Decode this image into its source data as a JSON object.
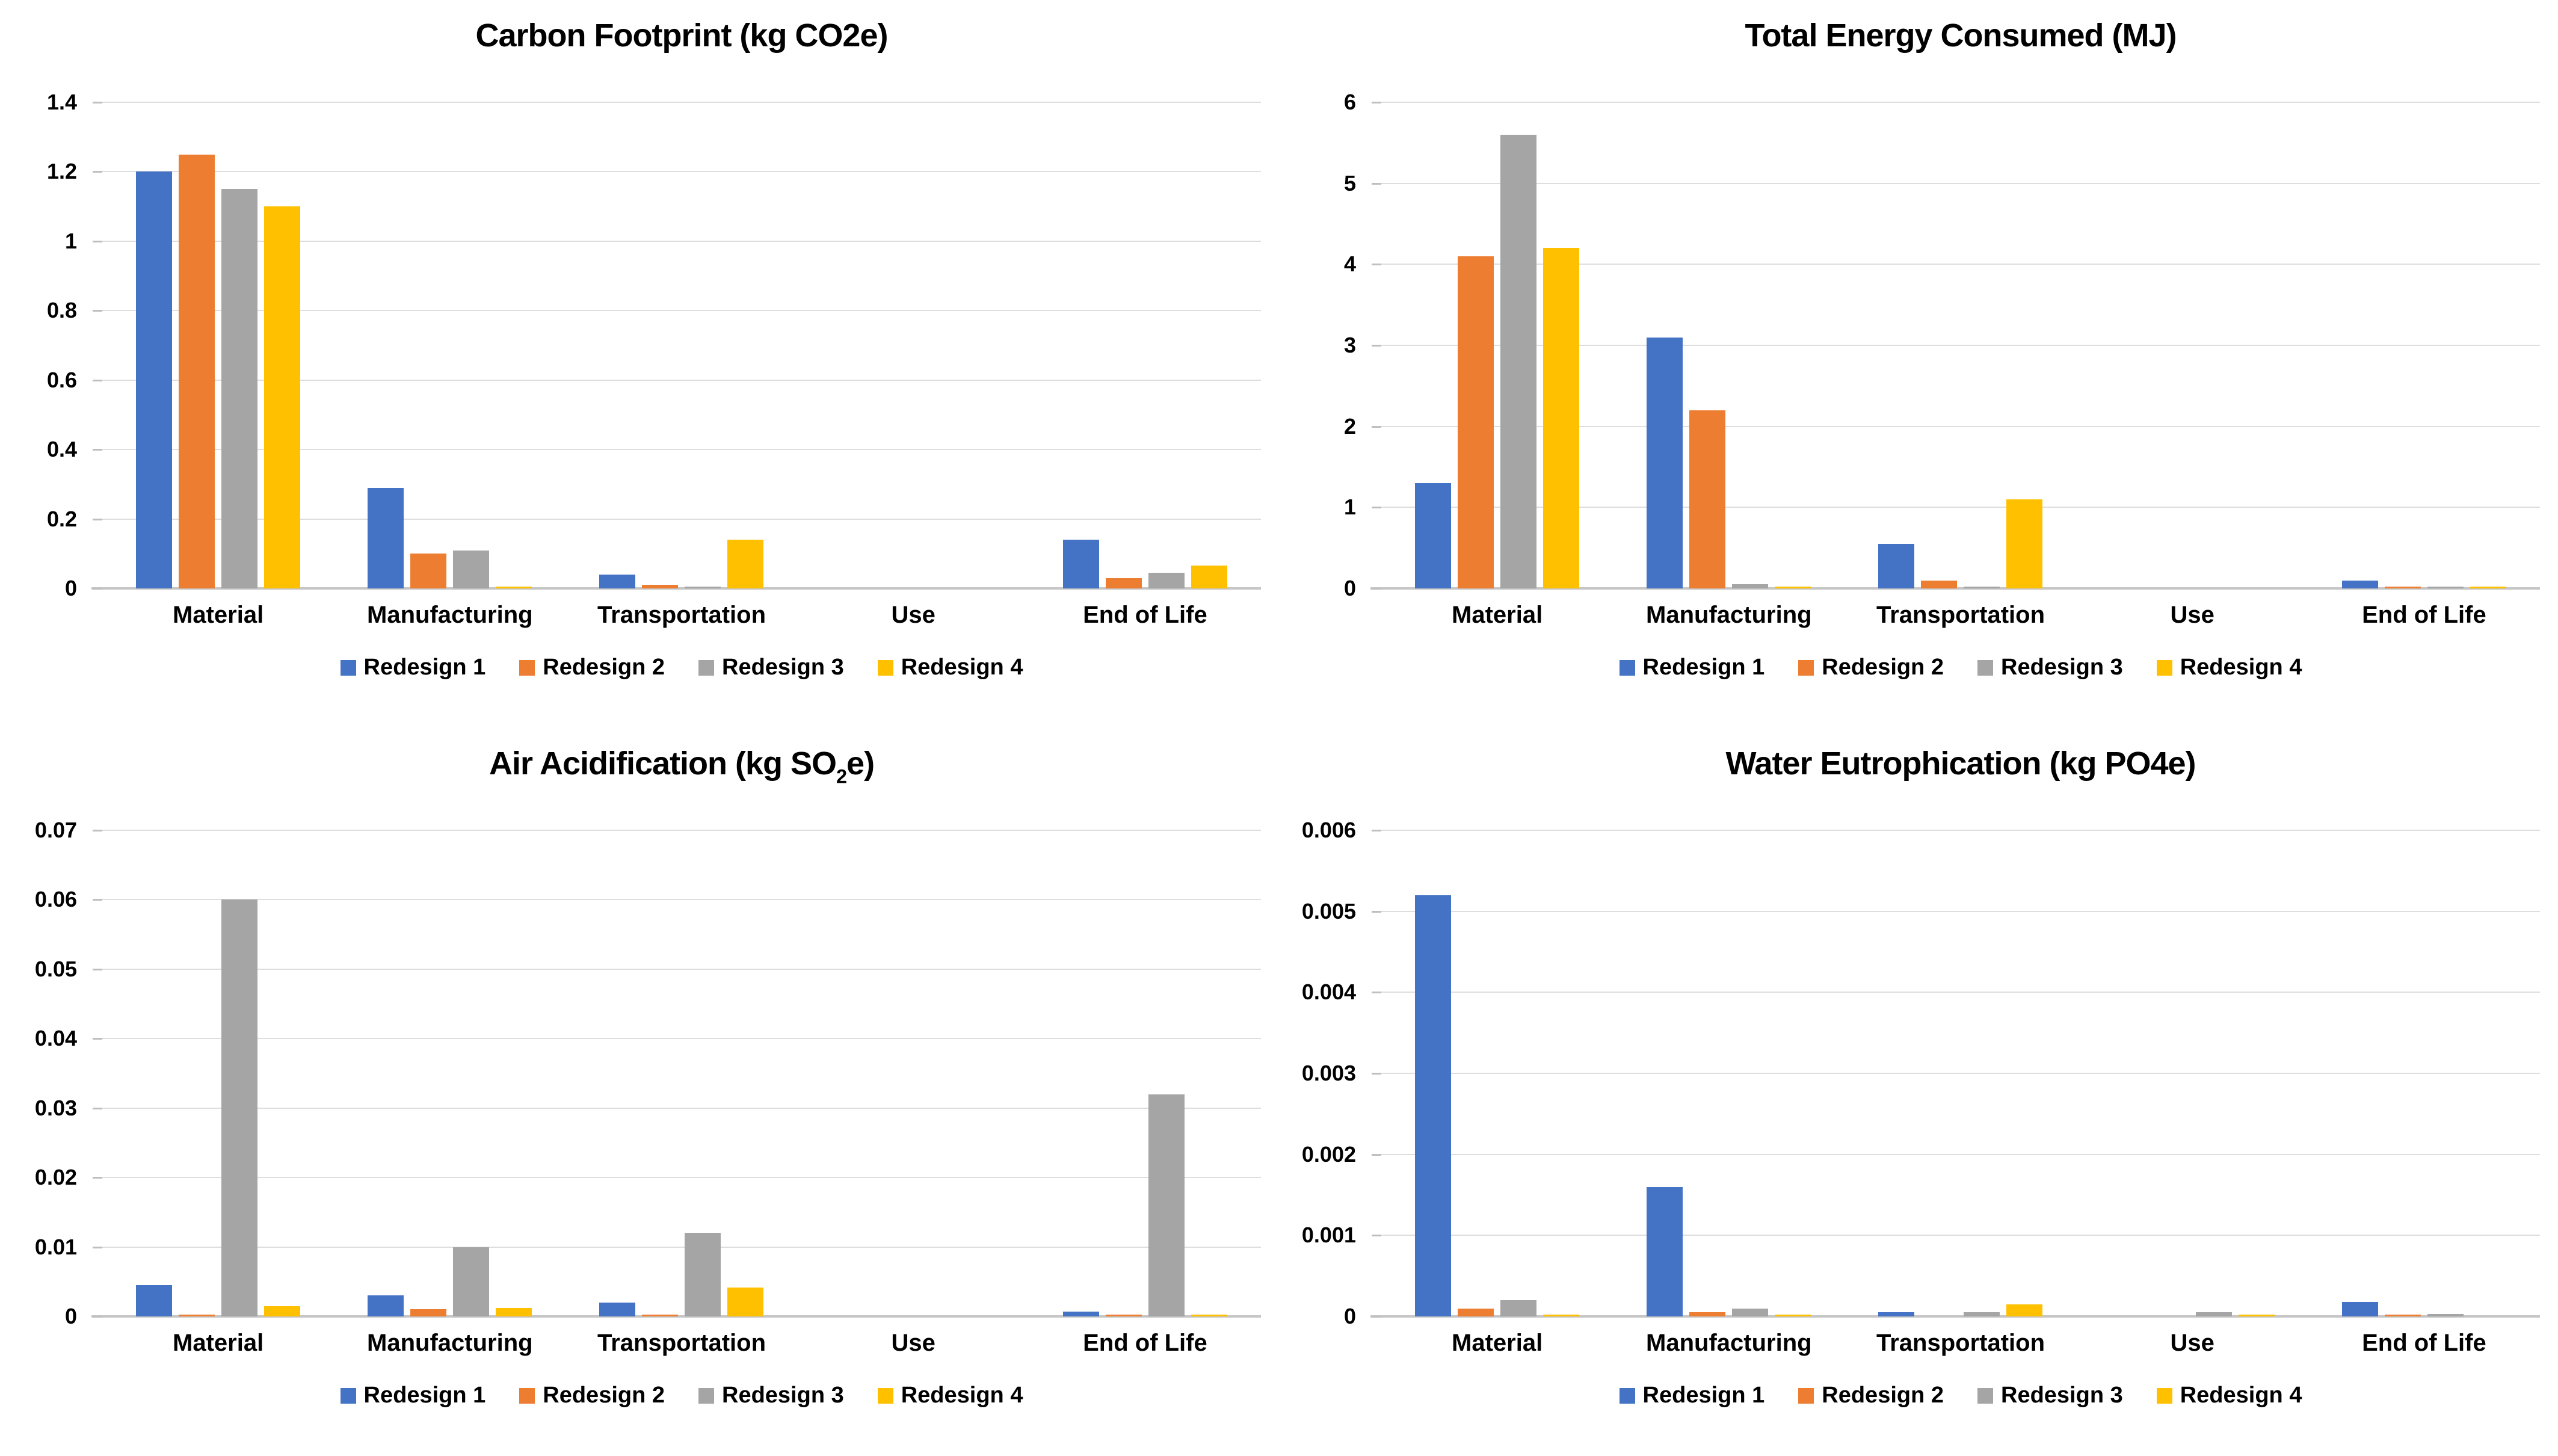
{
  "page": {
    "background": "#FFFFFF"
  },
  "palette": {
    "blue": "#4472C4",
    "orange": "#ED7D31",
    "gray": "#A5A5A5",
    "yellow": "#FFC000",
    "gridline": "#DEDEDE",
    "axis": "#C6C6C6",
    "tick": "#BFBFBF",
    "text": "#000000"
  },
  "legend_labels": [
    "Redesign 1",
    "Redesign 2",
    "Redesign 3",
    "Redesign 4"
  ],
  "chart_data": [
    {
      "type": "bar",
      "title": "Carbon Footprint (kg CO2e)",
      "title_parts": [
        {
          "text": "Carbon Footprint (kg CO2e)",
          "sub": false
        }
      ],
      "categories": [
        "Material",
        "Manufacturing",
        "Transportation",
        "Use",
        "End of Life"
      ],
      "series": [
        {
          "name": "Redesign 1",
          "color": "#4472C4",
          "values": [
            1.2,
            0.29,
            0.04,
            0,
            0.14
          ]
        },
        {
          "name": "Redesign 2",
          "color": "#ED7D31",
          "values": [
            1.25,
            0.1,
            0.01,
            0,
            0.03
          ]
        },
        {
          "name": "Redesign 3",
          "color": "#A5A5A5",
          "values": [
            1.15,
            0.11,
            0.005,
            0,
            0.045
          ]
        },
        {
          "name": "Redesign 4",
          "color": "#FFC000",
          "values": [
            1.1,
            0.005,
            0.14,
            0,
            0.065
          ]
        }
      ],
      "ylim": [
        0,
        1.4
      ],
      "ytick_step": 0.2,
      "yticks": [
        "0",
        "0.2",
        "0.4",
        "0.6",
        "0.8",
        "1",
        "1.2",
        "1.4"
      ],
      "grid": true,
      "legend_position": "bottom"
    },
    {
      "type": "bar",
      "title": "Total Energy Consumed (MJ)",
      "title_parts": [
        {
          "text": "Total Energy Consumed (MJ)",
          "sub": false
        }
      ],
      "categories": [
        "Material",
        "Manufacturing",
        "Transportation",
        "Use",
        "End of Life"
      ],
      "series": [
        {
          "name": "Redesign 1",
          "color": "#4472C4",
          "values": [
            1.3,
            3.1,
            0.55,
            0,
            0.1
          ]
        },
        {
          "name": "Redesign 2",
          "color": "#ED7D31",
          "values": [
            4.1,
            2.2,
            0.1,
            0,
            0.02
          ]
        },
        {
          "name": "Redesign 3",
          "color": "#A5A5A5",
          "values": [
            5.6,
            0.05,
            0.02,
            0,
            0.02
          ]
        },
        {
          "name": "Redesign 4",
          "color": "#FFC000",
          "values": [
            4.2,
            0.02,
            1.1,
            0,
            0.01
          ]
        }
      ],
      "ylim": [
        0,
        6
      ],
      "ytick_step": 1,
      "yticks": [
        "0",
        "1",
        "2",
        "3",
        "4",
        "5",
        "6"
      ],
      "grid": true,
      "legend_position": "bottom"
    },
    {
      "type": "bar",
      "title": "Air Acidification (kg SO2e)",
      "title_parts": [
        {
          "text": "Air Acidification (kg SO",
          "sub": false
        },
        {
          "text": "2",
          "sub": true
        },
        {
          "text": "e)",
          "sub": false
        }
      ],
      "categories": [
        "Material",
        "Manufacturing",
        "Transportation",
        "Use",
        "End of Life"
      ],
      "series": [
        {
          "name": "Redesign 1",
          "color": "#4472C4",
          "values": [
            0.0045,
            0.003,
            0.002,
            0,
            0.0007
          ]
        },
        {
          "name": "Redesign 2",
          "color": "#ED7D31",
          "values": [
            0.0002,
            0.001,
            0.0002,
            0,
            0.0002
          ]
        },
        {
          "name": "Redesign 3",
          "color": "#A5A5A5",
          "values": [
            0.06,
            0.01,
            0.012,
            0,
            0.032
          ]
        },
        {
          "name": "Redesign 4",
          "color": "#FFC000",
          "values": [
            0.0015,
            0.0012,
            0.0042,
            0,
            0.0003
          ]
        }
      ],
      "ylim": [
        0,
        0.07
      ],
      "ytick_step": 0.01,
      "yticks": [
        "0",
        "0.01",
        "0.02",
        "0.03",
        "0.04",
        "0.05",
        "0.06",
        "0.07"
      ],
      "grid": true,
      "legend_position": "bottom"
    },
    {
      "type": "bar",
      "title": "Water Eutrophication (kg PO4e)",
      "title_parts": [
        {
          "text": "Water Eutrophication (kg PO4e)",
          "sub": false
        }
      ],
      "categories": [
        "Material",
        "Manufacturing",
        "Transportation",
        "Use",
        "End of Life"
      ],
      "series": [
        {
          "name": "Redesign 1",
          "color": "#4472C4",
          "values": [
            0.0052,
            0.0016,
            5e-05,
            0,
            0.00018
          ]
        },
        {
          "name": "Redesign 2",
          "color": "#ED7D31",
          "values": [
            0.0001,
            5e-05,
            0,
            0,
            2e-05
          ]
        },
        {
          "name": "Redesign 3",
          "color": "#A5A5A5",
          "values": [
            0.0002,
            0.0001,
            5e-05,
            5e-05,
            3e-05
          ]
        },
        {
          "name": "Redesign 4",
          "color": "#FFC000",
          "values": [
            2e-05,
            2e-05,
            0.00015,
            1e-05,
            0
          ]
        }
      ],
      "ylim": [
        0,
        0.006
      ],
      "ytick_step": 0.001,
      "yticks": [
        "0",
        "0.001",
        "0.002",
        "0.003",
        "0.004",
        "0.005",
        "0.006"
      ],
      "grid": true,
      "legend_position": "bottom"
    }
  ]
}
